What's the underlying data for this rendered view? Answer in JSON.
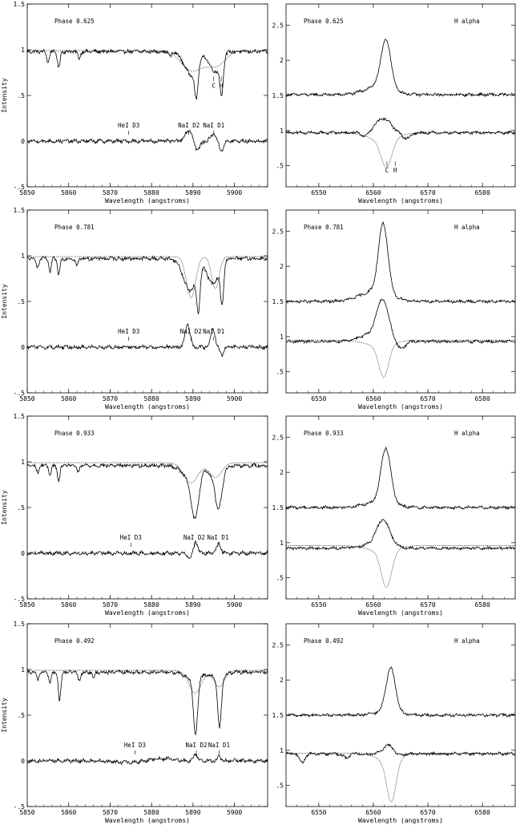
{
  "common": {
    "ylabel": "Intensity",
    "xlabel": "Wavelength (angstroms)",
    "halpha_label": "H alpha",
    "left_xticks": [
      5850,
      5860,
      5870,
      5880,
      5890,
      5900
    ],
    "left_xlim": [
      5850,
      5908
    ],
    "left_ylim": [
      -0.5,
      1.5
    ],
    "left_yticks": [
      {
        "v": -0.5,
        "t": "-.5"
      },
      {
        "v": 0,
        "t": "0"
      },
      {
        "v": 0.5,
        "t": ".5"
      },
      {
        "v": 1,
        "t": "1"
      },
      {
        "v": 1.5,
        "t": "1.5"
      }
    ],
    "right_xticks": [
      6550,
      6560,
      6570,
      6580
    ],
    "right_xlim": [
      6544,
      6586
    ],
    "right_ylim": [
      0.2,
      2.8
    ],
    "right_yticks": [
      {
        "v": 0.5,
        "t": ".5"
      },
      {
        "v": 1,
        "t": "1"
      },
      {
        "v": 1.5,
        "t": "1.5"
      },
      {
        "v": 2,
        "t": "2"
      },
      {
        "v": 2.5,
        "t": "2.5"
      }
    ],
    "line_labels": {
      "hei": "HeI D3",
      "nad2": "NaI D2",
      "nad1": "NaI D1",
      "c": "C",
      "h": "H"
    }
  },
  "chart_data": [
    {
      "type": "line",
      "panel": "sodium",
      "phase_label": "Phase 0.625",
      "phase": 0.625,
      "xlabel": "Wavelength (angstroms)",
      "ylabel": "Intensity",
      "xlim": [
        5850,
        5908
      ],
      "ylim": [
        -0.5,
        1.5
      ],
      "marker_positions": {
        "hei": 5874.5,
        "nad2": 5889.0,
        "nad1": 5895.0,
        "c": 5895.0,
        "h": 5896.8
      },
      "series": [
        {
          "name": "observed",
          "continuum": 0.98,
          "lines": [
            [
              5855,
              0.12,
              0.3
            ],
            [
              5857.6,
              0.18,
              0.3
            ],
            [
              5862.5,
              0.08,
              0.3
            ],
            [
              5884.5,
              0.06,
              0.3
            ],
            [
              5889.5,
              0.25,
              1.6
            ],
            [
              5890.8,
              0.35,
              0.4
            ],
            [
              5895.3,
              0.22,
              1.3
            ],
            [
              5896.9,
              0.38,
              0.4
            ]
          ]
        },
        {
          "name": "synthetic",
          "continuum": 0.99,
          "lines": [
            [
              5889.8,
              0.22,
              2.6
            ],
            [
              5895.6,
              0.16,
              2.2
            ]
          ]
        },
        {
          "name": "residual",
          "continuum": 0.0,
          "lines": [
            [
              5889.0,
              -0.12,
              0.9
            ],
            [
              5891.0,
              0.1,
              0.7
            ],
            [
              5895.0,
              -0.08,
              0.7
            ],
            [
              5896.8,
              0.1,
              0.6
            ]
          ]
        }
      ]
    },
    {
      "type": "line",
      "panel": "halpha",
      "phase_label": "Phase 0.625",
      "phase": 0.625,
      "xlabel": "Wavelength (angstroms)",
      "title": "H alpha",
      "xlim": [
        6544,
        6586
      ],
      "ylim": [
        0.2,
        2.8
      ],
      "marker_positions": {
        "c": 6562.5,
        "h": 6564.0
      },
      "series": [
        {
          "name": "observed",
          "continuum": 1.51,
          "lines": [
            [
              6562.3,
              -0.68,
              0.9
            ],
            [
              6561.0,
              -0.12,
              2.5
            ]
          ]
        },
        {
          "name": "synthetic",
          "continuum": 0.97,
          "lines": [
            [
              6562.4,
              0.4,
              1.0
            ],
            [
              6561.5,
              0.1,
              2.6
            ]
          ]
        },
        {
          "name": "residual",
          "continuum": 0.97,
          "lines": [
            [
              6561.8,
              -0.2,
              1.4
            ],
            [
              6558.5,
              0.06,
              0.6
            ],
            [
              6566.0,
              0.08,
              0.8
            ]
          ]
        }
      ]
    },
    {
      "type": "line",
      "panel": "sodium",
      "phase_label": "Phase 0.781",
      "phase": 0.781,
      "xlabel": "Wavelength (angstroms)",
      "ylabel": "Intensity",
      "xlim": [
        5850,
        5908
      ],
      "ylim": [
        -0.5,
        1.5
      ],
      "marker_positions": {
        "hei": 5874.5,
        "nad2": 5889.5,
        "nad1": 5895.0
      },
      "series": [
        {
          "name": "observed",
          "continuum": 0.97,
          "lines": [
            [
              5852.5,
              0.1,
              0.3
            ],
            [
              5855.5,
              0.15,
              0.3
            ],
            [
              5857.6,
              0.18,
              0.3
            ],
            [
              5862.0,
              0.08,
              0.3
            ],
            [
              5889.3,
              0.35,
              1.6
            ],
            [
              5891.3,
              0.42,
              0.4
            ],
            [
              5894.8,
              0.28,
              1.3
            ],
            [
              5897.0,
              0.45,
              0.4
            ]
          ]
        },
        {
          "name": "synthetic",
          "continuum": 0.99,
          "lines": [
            [
              5889.5,
              0.45,
              1.1
            ],
            [
              5895.4,
              0.35,
              0.9
            ]
          ]
        },
        {
          "name": "residual",
          "continuum": 0.0,
          "lines": [
            [
              5888.7,
              -0.25,
              0.6
            ],
            [
              5894.8,
              -0.2,
              0.5
            ],
            [
              5897.0,
              0.08,
              0.5
            ]
          ]
        }
      ]
    },
    {
      "type": "line",
      "panel": "halpha",
      "phase_label": "Phase 0.781",
      "phase": 0.781,
      "xlabel": "Wavelength (angstroms)",
      "title": "H alpha",
      "xlim": [
        6544,
        6586
      ],
      "ylim": [
        0.2,
        2.8
      ],
      "marker_positions": {},
      "series": [
        {
          "name": "observed",
          "continuum": 1.5,
          "lines": [
            [
              6561.8,
              -0.98,
              0.85
            ],
            [
              6560.5,
              -0.15,
              2.8
            ]
          ]
        },
        {
          "name": "synthetic",
          "continuum": 0.95,
          "lines": [
            [
              6561.9,
              0.45,
              0.9
            ],
            [
              6561.0,
              0.08,
              2.5
            ]
          ]
        },
        {
          "name": "residual",
          "continuum": 0.93,
          "lines": [
            [
              6561.7,
              -0.52,
              1.1
            ],
            [
              6560.0,
              -0.1,
              2.5
            ],
            [
              6565.0,
              0.12,
              0.8
            ]
          ]
        }
      ]
    },
    {
      "type": "line",
      "panel": "sodium",
      "phase_label": "Phase 0.933",
      "phase": 0.933,
      "xlabel": "Wavelength (angstroms)",
      "ylabel": "Intensity",
      "xlim": [
        5850,
        5908
      ],
      "ylim": [
        -0.5,
        1.5
      ],
      "marker_positions": {
        "hei": 5875.0,
        "nad2": 5890.3,
        "nad1": 5896.0
      },
      "series": [
        {
          "name": "observed",
          "continuum": 0.96,
          "lines": [
            [
              5852.5,
              0.08,
              0.3
            ],
            [
              5855.5,
              0.1,
              0.3
            ],
            [
              5857.6,
              0.18,
              0.3
            ],
            [
              5862.3,
              0.08,
              0.3
            ],
            [
              5890.5,
              0.5,
              0.9
            ],
            [
              5896.2,
              0.4,
              0.8
            ],
            [
              5889.0,
              0.12,
              1.8
            ],
            [
              5895.0,
              0.1,
              1.6
            ]
          ]
        },
        {
          "name": "synthetic",
          "continuum": 0.99,
          "lines": [
            [
              5889.5,
              0.22,
              1.7
            ],
            [
              5895.4,
              0.16,
              1.5
            ]
          ]
        },
        {
          "name": "residual",
          "continuum": 0.0,
          "lines": [
            [
              5889.5,
              0.05,
              0.7
            ],
            [
              5890.6,
              -0.14,
              0.5
            ],
            [
              5896.2,
              -0.1,
              0.5
            ]
          ]
        }
      ]
    },
    {
      "type": "line",
      "panel": "halpha",
      "phase_label": "Phase 0.933",
      "phase": 0.933,
      "xlabel": "Wavelength (angstroms)",
      "title": "H alpha",
      "xlim": [
        6544,
        6586
      ],
      "ylim": [
        0.2,
        2.8
      ],
      "marker_positions": {},
      "series": [
        {
          "name": "observed",
          "continuum": 1.5,
          "lines": [
            [
              6562.3,
              -0.78,
              0.9
            ],
            [
              6561.0,
              -0.08,
              2.6
            ]
          ]
        },
        {
          "name": "synthetic",
          "continuum": 0.96,
          "lines": [
            [
              6562.4,
              0.52,
              0.95
            ],
            [
              6561.5,
              0.08,
              2.6
            ]
          ]
        },
        {
          "name": "residual",
          "continuum": 0.92,
          "lines": [
            [
              6561.8,
              -0.36,
              1.2
            ],
            [
              6560.5,
              -0.05,
              2.8
            ]
          ]
        }
      ]
    },
    {
      "type": "line",
      "panel": "sodium",
      "phase_label": "Phase 0.492",
      "phase": 0.492,
      "xlabel": "Wavelength (angstroms)",
      "ylabel": "Intensity",
      "xlim": [
        5850,
        5908
      ],
      "ylim": [
        -0.5,
        1.5
      ],
      "marker_positions": {
        "hei": 5876.0,
        "nad2": 5890.8,
        "nad1": 5896.3
      },
      "series": [
        {
          "name": "observed",
          "continuum": 0.97,
          "lines": [
            [
              5852.5,
              0.08,
              0.3
            ],
            [
              5855.5,
              0.12,
              0.3
            ],
            [
              5857.8,
              0.32,
              0.3
            ],
            [
              5862.5,
              0.1,
              0.3
            ],
            [
              5866,
              0.06,
              0.3
            ],
            [
              5890.6,
              0.62,
              0.5
            ],
            [
              5896.4,
              0.55,
              0.45
            ],
            [
              5890.0,
              0.08,
              1.8
            ],
            [
              5896.0,
              0.06,
              1.6
            ]
          ]
        },
        {
          "name": "synthetic",
          "continuum": 0.99,
          "lines": [
            [
              5890.5,
              0.25,
              1.5
            ],
            [
              5896.3,
              0.18,
              1.3
            ]
          ]
        },
        {
          "name": "residual",
          "continuum": 0.0,
          "lines": [
            [
              5890.6,
              -0.08,
              0.4
            ],
            [
              5896.3,
              -0.06,
              0.35
            ],
            [
              5875.0,
              0.02,
              4.0
            ],
            [
              5882.0,
              -0.03,
              3.0
            ]
          ]
        }
      ]
    },
    {
      "type": "line",
      "panel": "halpha",
      "phase_label": "Phase 0.492",
      "phase": 0.492,
      "xlabel": "Wavelength (angstroms)",
      "title": "H alpha",
      "xlim": [
        6544,
        6586
      ],
      "ylim": [
        0.2,
        2.8
      ],
      "marker_positions": {},
      "series": [
        {
          "name": "observed",
          "continuum": 1.5,
          "lines": [
            [
              6563.2,
              -0.62,
              0.85
            ],
            [
              6562.5,
              -0.05,
              2.2
            ]
          ]
        },
        {
          "name": "synthetic",
          "continuum": 0.96,
          "lines": [
            [
              6563.3,
              0.6,
              0.85
            ],
            [
              6562.5,
              0.1,
              2.2
            ]
          ]
        },
        {
          "name": "residual",
          "continuum": 0.95,
          "lines": [
            [
              6562.8,
              -0.12,
              1.0
            ],
            [
              6564.5,
              0.04,
              0.6
            ],
            [
              6547.0,
              0.12,
              0.5
            ],
            [
              6555.0,
              0.06,
              0.5
            ]
          ]
        }
      ]
    }
  ]
}
